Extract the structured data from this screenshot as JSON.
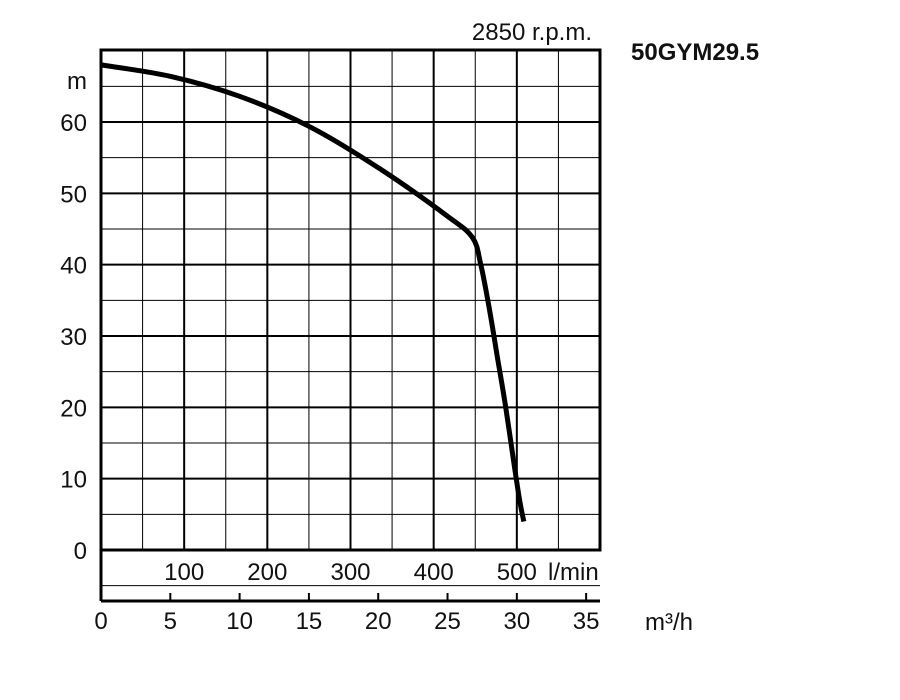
{
  "chart_data": {
    "type": "line",
    "title": "50GYM29.5",
    "subtitle": "2850 r.p.m.",
    "ylabel": "m",
    "y_ticks": [
      0,
      10,
      20,
      30,
      40,
      50,
      60
    ],
    "ylim": [
      -7,
      70
    ],
    "x_flow_lpm": {
      "unit_label": "l/min",
      "ticks": [
        100,
        200,
        300,
        400,
        500
      ]
    },
    "x_flow_m3h": {
      "unit_label": "m³/h",
      "ticks": [
        0,
        5,
        10,
        15,
        20,
        25,
        30,
        35
      ],
      "range": [
        0,
        36
      ]
    },
    "grid": true,
    "series": [
      {
        "x": [
          0,
          5,
          10,
          15,
          20,
          25,
          26.8,
          27.4,
          28,
          28.6,
          29.2,
          29.8,
          30.2,
          30.5
        ],
        "y": [
          68,
          66.4,
          63.6,
          59.4,
          53.6,
          46.8,
          43.8,
          40,
          34,
          27,
          20,
          12,
          7,
          4
        ],
        "color": "#000000"
      }
    ]
  }
}
